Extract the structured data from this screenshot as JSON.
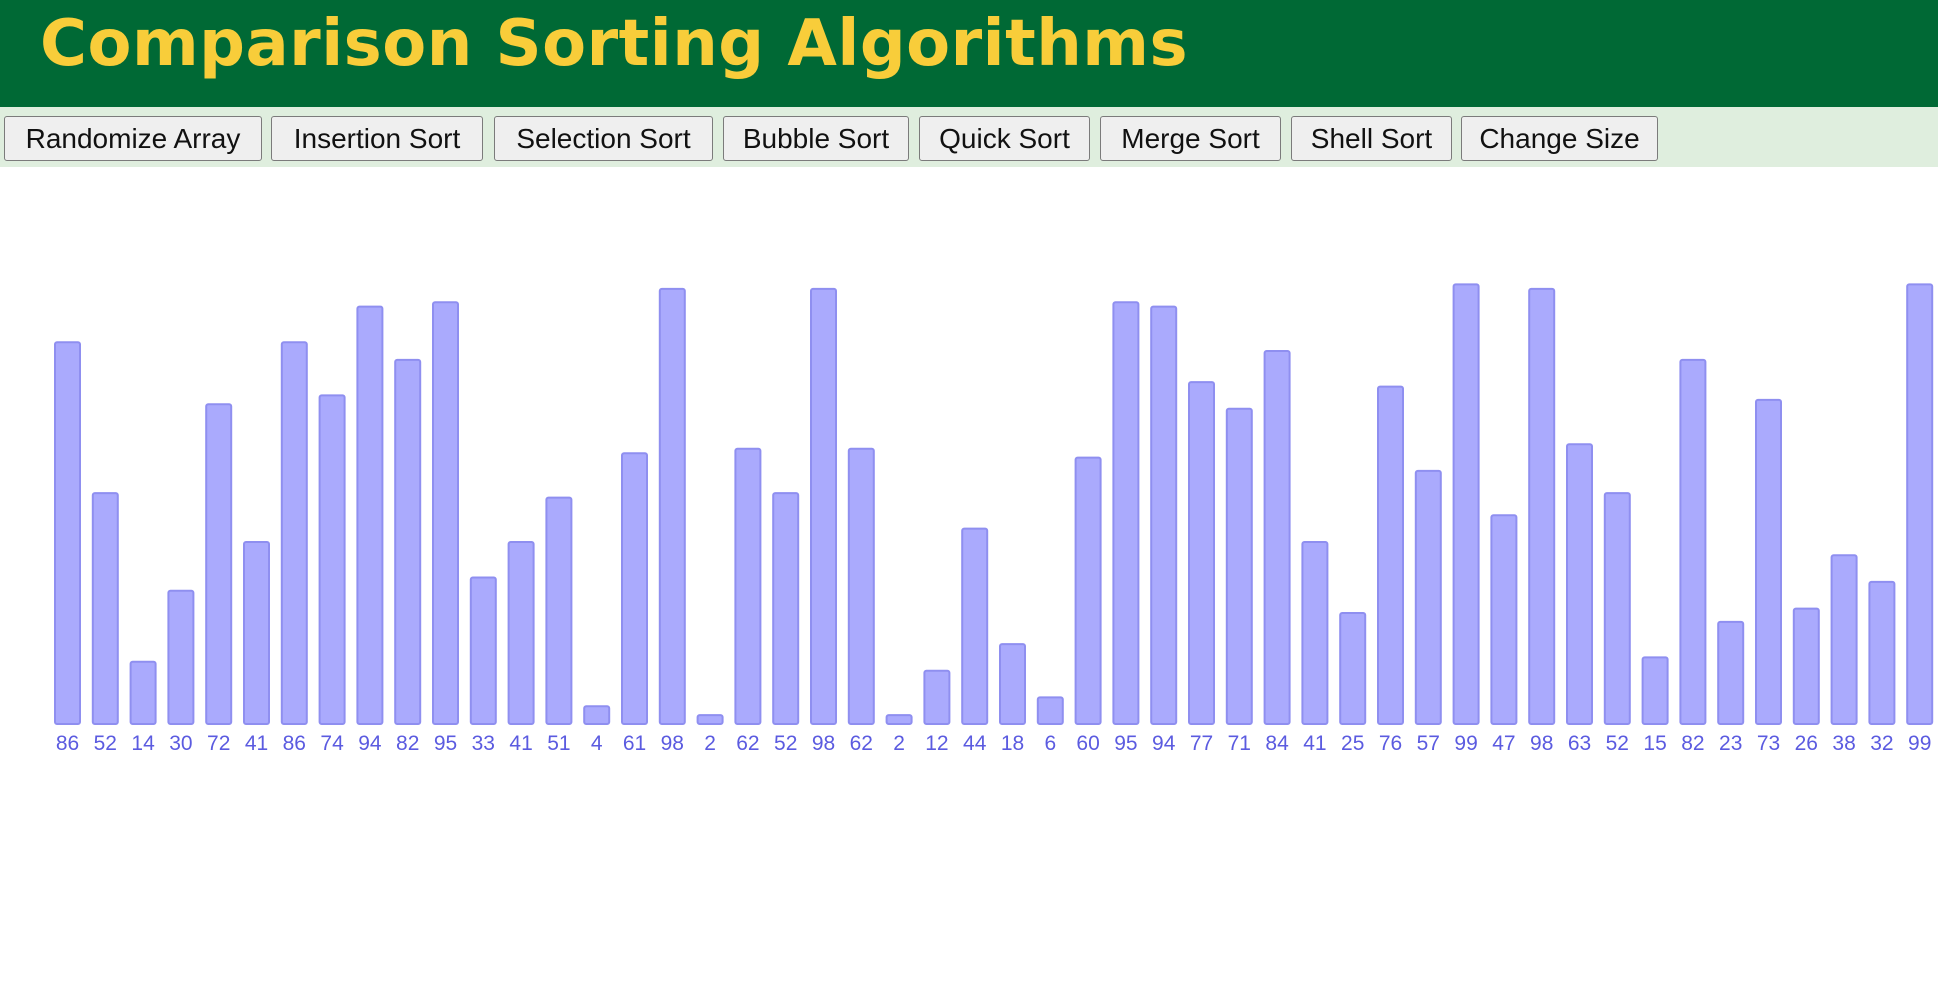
{
  "header": {
    "title": "Comparison Sorting Algorithms",
    "background_color": "#006935",
    "title_color": "#f8cd3a"
  },
  "toolbar": {
    "background_color": "#dfeede",
    "buttons": [
      {
        "label": "Randomize Array"
      },
      {
        "label": "Insertion Sort"
      },
      {
        "label": "Selection Sort"
      },
      {
        "label": "Bubble Sort"
      },
      {
        "label": "Quick Sort"
      },
      {
        "label": "Merge Sort"
      },
      {
        "label": "Shell Sort"
      },
      {
        "label": "Change Size"
      }
    ]
  },
  "array": {
    "bar_fill_color": "#aaaafd",
    "bar_stroke_color": "#8f8ff0",
    "label_color": "#5b5be0",
    "values": [
      86,
      52,
      14,
      30,
      72,
      41,
      86,
      74,
      94,
      82,
      95,
      33,
      41,
      51,
      4,
      61,
      98,
      2,
      62,
      52,
      98,
      62,
      2,
      12,
      44,
      18,
      6,
      60,
      95,
      94,
      77,
      71,
      84,
      41,
      25,
      76,
      57,
      99,
      47,
      98,
      63,
      52,
      15,
      82,
      23,
      73,
      26,
      38,
      32,
      99
    ]
  }
}
